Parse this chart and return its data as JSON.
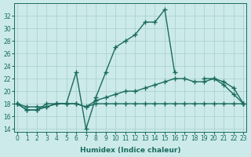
{
  "x": [
    0,
    1,
    2,
    3,
    4,
    5,
    6,
    7,
    8,
    9,
    10,
    11,
    12,
    13,
    14,
    15,
    16,
    17,
    18,
    19,
    20,
    21,
    22,
    23
  ],
  "line1": [
    18.0,
    17.0,
    17.0,
    18.0,
    18.0,
    18.0,
    23.0,
    14.0,
    19.0,
    23.0,
    27.0,
    28.0,
    29.0,
    31.0,
    31.0,
    33.0,
    23.0,
    null,
    null,
    22.0,
    22.0,
    21.0,
    19.5,
    18.0
  ],
  "line2": [
    18.0,
    17.5,
    17.5,
    17.5,
    18.0,
    18.0,
    18.0,
    17.5,
    18.0,
    18.0,
    18.0,
    18.0,
    18.0,
    18.0,
    18.0,
    18.0,
    18.0,
    18.0,
    18.0,
    18.0,
    18.0,
    18.0,
    18.0,
    18.0
  ],
  "line3": [
    18.0,
    17.0,
    17.0,
    17.5,
    18.0,
    18.0,
    18.0,
    17.5,
    18.5,
    19.0,
    19.5,
    20.0,
    20.0,
    20.5,
    21.0,
    21.5,
    22.0,
    22.0,
    21.5,
    21.5,
    22.0,
    21.5,
    20.5,
    18.0
  ],
  "line_color": "#1a6b5e",
  "bg_color": "#cceaea",
  "grid_color": "#a8cccc",
  "ylim": [
    13.5,
    34.0
  ],
  "xlim": [
    -0.3,
    23.3
  ],
  "yticks": [
    14,
    16,
    18,
    20,
    22,
    24,
    26,
    28,
    30,
    32
  ],
  "xticks": [
    0,
    1,
    2,
    3,
    4,
    5,
    6,
    7,
    8,
    9,
    10,
    11,
    12,
    13,
    14,
    15,
    16,
    17,
    18,
    19,
    20,
    21,
    22,
    23
  ],
  "xlabel": "Humidex (Indice chaleur)",
  "marker": "+",
  "markersize": 4,
  "linewidth": 1.0
}
